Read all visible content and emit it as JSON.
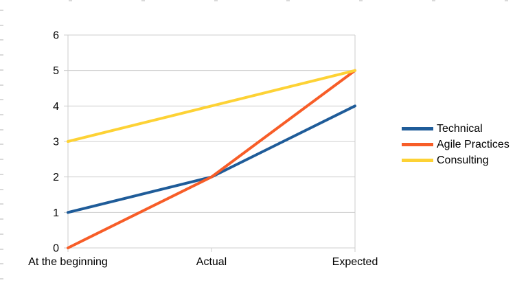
{
  "chart_data": {
    "type": "line",
    "categories": [
      "At the beginning",
      "Actual",
      "Expected"
    ],
    "series": [
      {
        "name": "Technical",
        "color": "#1F5C99",
        "values": [
          1,
          2,
          4
        ]
      },
      {
        "name": "Agile Practices",
        "color": "#F75D28",
        "values": [
          0,
          2,
          5
        ]
      },
      {
        "name": "Consulting",
        "color": "#FDD235",
        "values": [
          3,
          4,
          5
        ]
      }
    ],
    "title": "",
    "xlabel": "",
    "ylabel": "",
    "ylim": [
      0,
      6
    ],
    "ytick_step": 1,
    "yticks": [
      "0",
      "1",
      "2",
      "3",
      "4",
      "5",
      "6"
    ],
    "grid": true,
    "legend_position": "right",
    "colors": {
      "gridline": "#cccccc",
      "axis_text": "#000000",
      "background": "#ffffff",
      "sheet_tick": "#d9d9d9"
    }
  }
}
